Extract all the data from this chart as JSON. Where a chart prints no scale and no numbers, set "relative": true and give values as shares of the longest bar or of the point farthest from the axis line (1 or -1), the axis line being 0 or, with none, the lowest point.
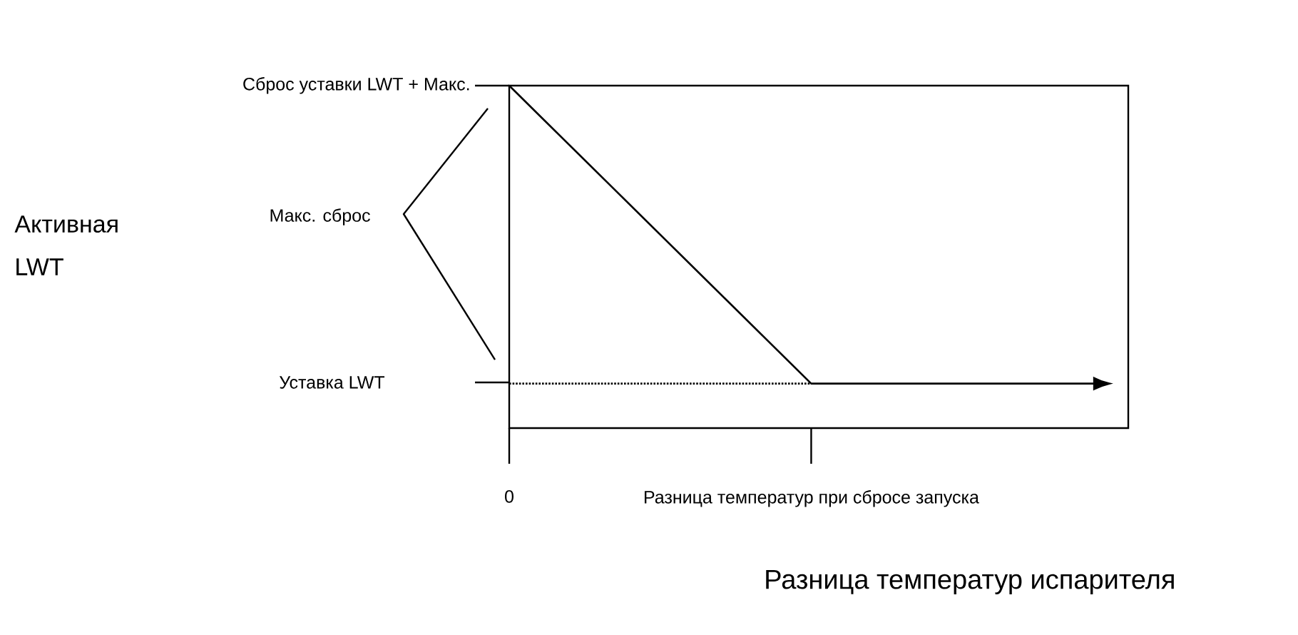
{
  "chart_data": {
    "type": "line",
    "relative": true,
    "xlabel": "Разница температур испарителя",
    "categories": [
      "0",
      "Разница температур при сбросе запуска",
      null
    ],
    "marker": "none",
    "series": [
      {
        "color": "#000000",
        "line_style": "solid",
        "values": [
          1,
          0.13,
          0.13
        ]
      },
      {
        "color": "#000000",
        "line_style": "dotted",
        "values": [
          0.13,
          0.13,
          null
        ]
      }
    ],
    "annotations": [
      "Сброс уставки LWT + Макс.",
      "Макс. сброс",
      "Уставка LWT",
      "Активная LWT"
    ]
  }
}
